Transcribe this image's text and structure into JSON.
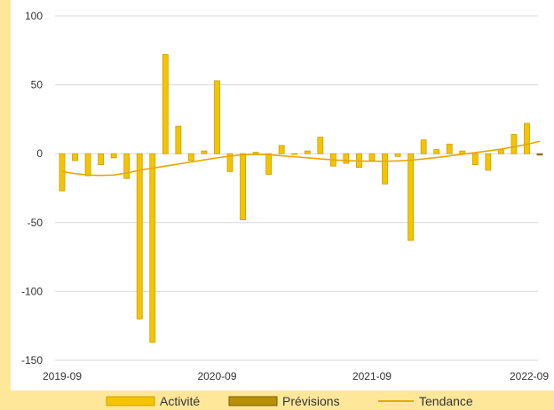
{
  "chart_data": {
    "type": "bar",
    "y_ticks": [
      "100",
      "50",
      "0",
      "-50",
      "-100",
      "-150"
    ],
    "y_tick_values": [
      100,
      50,
      0,
      -50,
      -100,
      -150
    ],
    "ylim": [
      -150,
      100
    ],
    "x_tick_labels": [
      "2019-09",
      "2020-09",
      "2021-09",
      "2022-09"
    ],
    "x_tick_positions": [
      0,
      12,
      24,
      36
    ],
    "grid": true,
    "legend_position": "bottom",
    "series": [
      {
        "name": "Activité",
        "kind": "bar",
        "color": "#f5c400",
        "values": [
          -27,
          -5,
          -16,
          -8,
          -3,
          -18,
          -120,
          -137,
          72,
          20,
          -5,
          2,
          53,
          -13,
          -48,
          1,
          -15,
          6,
          0,
          2,
          12,
          -9,
          -7,
          -10,
          -5,
          -22,
          -2,
          -63,
          10,
          3,
          7,
          2,
          -8,
          -12,
          3,
          14,
          22
        ]
      },
      {
        "name": "Prévisions",
        "kind": "bar",
        "color": "#b8900a",
        "values": [
          null,
          null,
          null,
          null,
          null,
          null,
          null,
          null,
          null,
          null,
          null,
          null,
          null,
          null,
          null,
          null,
          null,
          null,
          null,
          null,
          null,
          null,
          null,
          null,
          null,
          null,
          null,
          null,
          null,
          null,
          null,
          null,
          null,
          null,
          null,
          null,
          null,
          -1
        ]
      },
      {
        "name": "Tendance",
        "kind": "line",
        "color": "#e6a800",
        "values": [
          -13,
          -14.5,
          -15.5,
          -15.8,
          -15.5,
          -14,
          -12,
          -10.5,
          -9,
          -7.5,
          -6,
          -4.5,
          -3,
          -1.8,
          -0.8,
          -0.5,
          -0.8,
          -1.5,
          -2.2,
          -3,
          -3.8,
          -4.5,
          -5,
          -5.3,
          -5.5,
          -5.5,
          -5.2,
          -4.7,
          -3.8,
          -2.8,
          -1.6,
          -0.4,
          0.8,
          2,
          3.3,
          5,
          6.8,
          9
        ]
      }
    ]
  }
}
